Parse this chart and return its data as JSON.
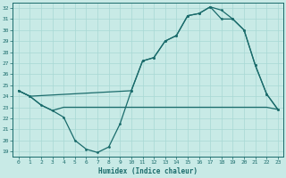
{
  "xlabel": "Humidex (Indice chaleur)",
  "ylabel": "",
  "xlim": [
    -0.5,
    23.5
  ],
  "ylim": [
    18.5,
    32.5
  ],
  "xticks": [
    0,
    1,
    2,
    3,
    4,
    5,
    6,
    7,
    8,
    9,
    10,
    11,
    12,
    13,
    14,
    15,
    16,
    17,
    18,
    19,
    20,
    21,
    22,
    23
  ],
  "yticks": [
    19,
    20,
    21,
    22,
    23,
    24,
    25,
    26,
    27,
    28,
    29,
    30,
    31,
    32
  ],
  "background_color": "#c8eae6",
  "line_color": "#1a6b6b",
  "grid_color": "#a8d8d4",
  "line1_x": [
    0,
    1,
    2,
    3,
    4,
    5,
    6,
    7,
    8,
    9,
    10,
    11,
    12,
    13,
    14,
    15,
    16,
    17,
    18,
    19,
    20,
    21,
    22,
    23
  ],
  "line1_y": [
    24.5,
    24.0,
    23.2,
    22.7,
    22.1,
    20.0,
    19.2,
    18.9,
    19.4,
    21.5,
    24.5,
    27.2,
    27.5,
    29.0,
    29.5,
    31.3,
    31.5,
    32.1,
    31.8,
    31.0,
    30.0,
    26.8,
    24.2,
    22.8
  ],
  "line2_x": [
    0,
    1,
    2,
    3,
    4,
    5,
    6,
    7,
    8,
    9,
    10,
    11,
    12,
    13,
    14,
    15,
    16,
    17,
    18,
    19,
    20,
    21,
    22,
    23
  ],
  "line2_y": [
    24.5,
    24.0,
    23.2,
    22.7,
    23.0,
    23.0,
    23.0,
    23.0,
    23.0,
    23.0,
    23.0,
    23.0,
    23.0,
    23.0,
    23.0,
    23.0,
    23.0,
    23.0,
    23.0,
    23.0,
    23.0,
    23.0,
    23.0,
    22.8
  ],
  "line3_x": [
    0,
    1,
    10,
    11,
    12,
    13,
    14,
    15,
    16,
    17,
    18,
    19,
    20,
    21,
    22,
    23
  ],
  "line3_y": [
    24.5,
    24.0,
    24.5,
    27.2,
    27.5,
    29.0,
    29.5,
    31.3,
    31.5,
    32.1,
    31.0,
    31.0,
    30.0,
    26.8,
    24.2,
    22.8
  ]
}
